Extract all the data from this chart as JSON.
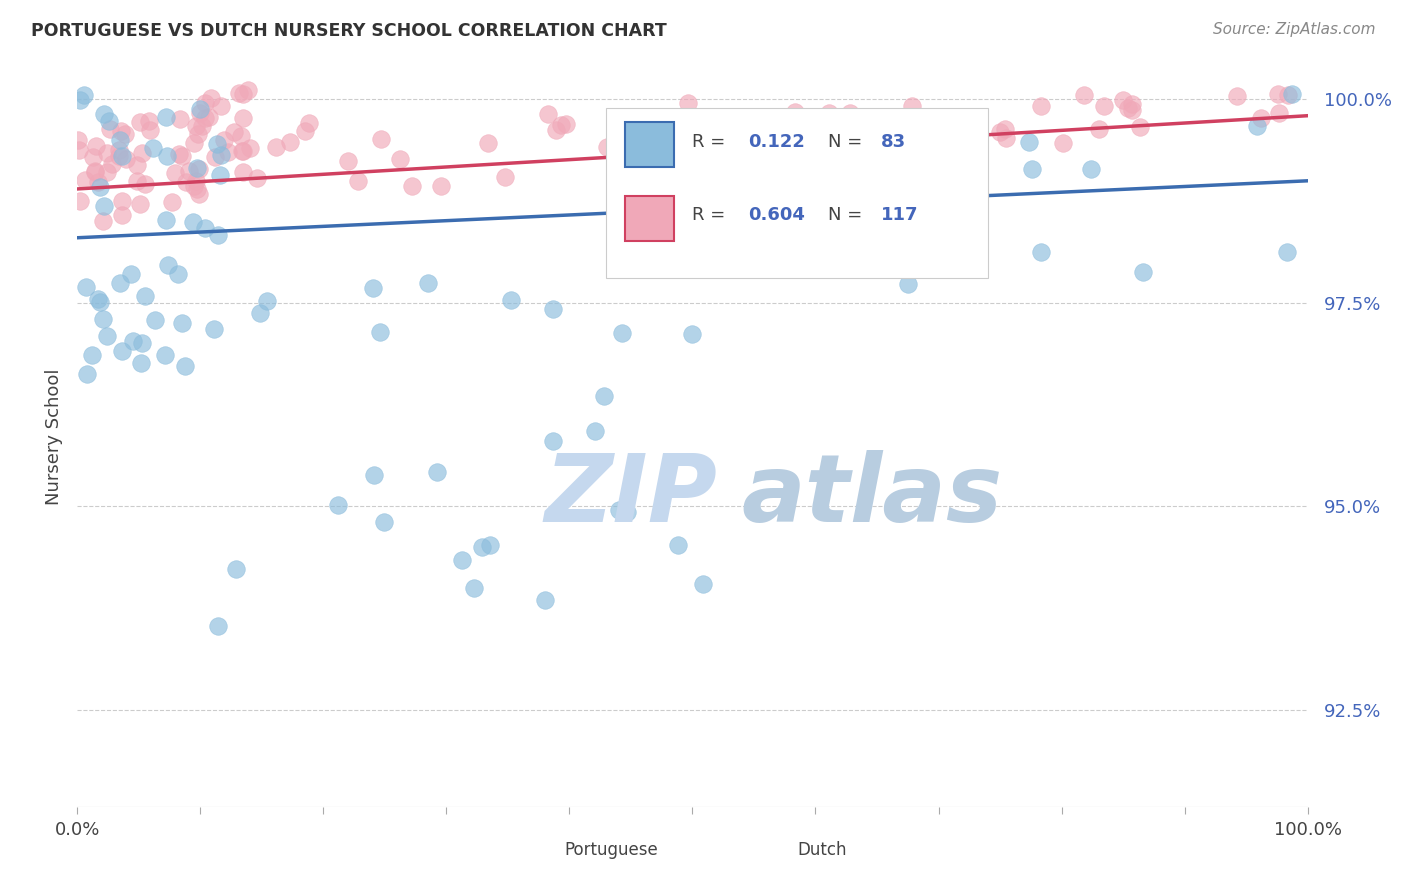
{
  "title": "PORTUGUESE VS DUTCH NURSERY SCHOOL CORRELATION CHART",
  "source": "Source: ZipAtlas.com",
  "ylabel": "Nursery School",
  "xlim": [
    0.0,
    1.0
  ],
  "ylim": [
    0.913,
    1.004
  ],
  "yticks": [
    0.925,
    0.95,
    0.975,
    1.0
  ],
  "ytick_labels": [
    "92.5%",
    "95.0%",
    "97.5%",
    "100.0%"
  ],
  "portuguese_R": 0.122,
  "portuguese_N": 83,
  "dutch_R": 0.604,
  "dutch_N": 117,
  "portuguese_color": "#8BBCDC",
  "dutch_color": "#F0A8B8",
  "trend_portuguese_color": "#3B6CB0",
  "trend_dutch_color": "#D04060",
  "watermark_zip_color": "#C5D8EE",
  "watermark_atlas_color": "#B8CDE0",
  "background_color": "#FFFFFF",
  "grid_color": "#CCCCCC",
  "ytick_color": "#4466BB",
  "title_color": "#333333",
  "source_color": "#888888"
}
